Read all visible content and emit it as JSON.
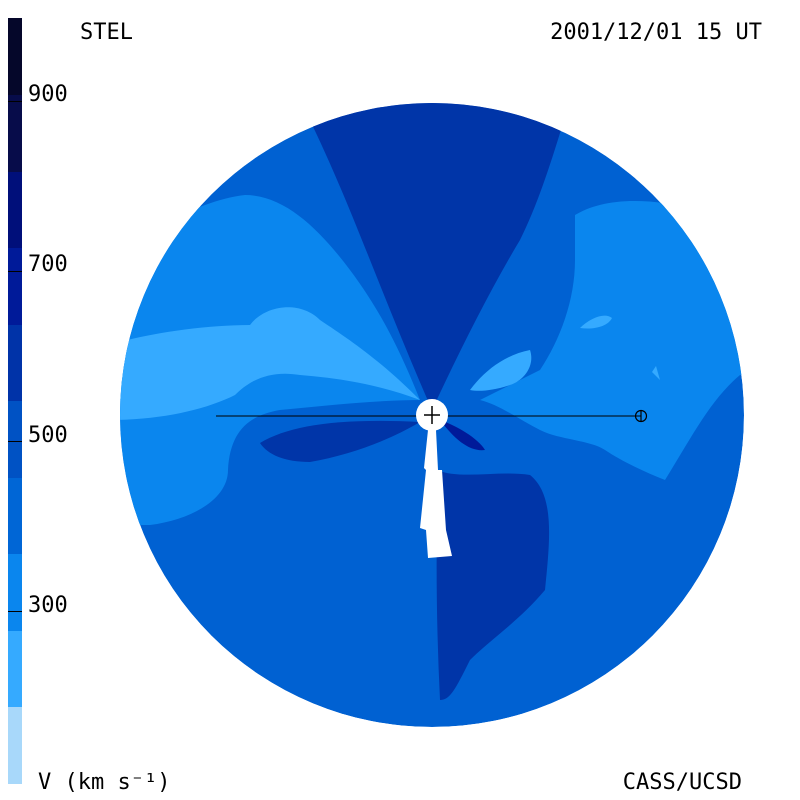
{
  "header": {
    "title_left": "STEL",
    "title_right": "2001/12/01 15 UT"
  },
  "footer": {
    "unit_label": "V (km s⁻¹)",
    "credit": "CASS/UCSD"
  },
  "colorbar": {
    "ticks": [
      "900",
      "700",
      "500",
      "300"
    ],
    "colors": [
      "#a8d8fa",
      "#35aaff",
      "#0a86ee",
      "#0066d6",
      "#0052c4",
      "#0033a8",
      "#001a99",
      "#000f7a",
      "#070c4a",
      "#05072a"
    ]
  },
  "map": {
    "colors": {
      "level_300": "#35aaff",
      "level_400": "#0a86ee",
      "level_500": "#0061d2",
      "level_600": "#0035a8",
      "level_700": "#001a99",
      "sun": "#ffffff",
      "outline": "#000000"
    }
  }
}
